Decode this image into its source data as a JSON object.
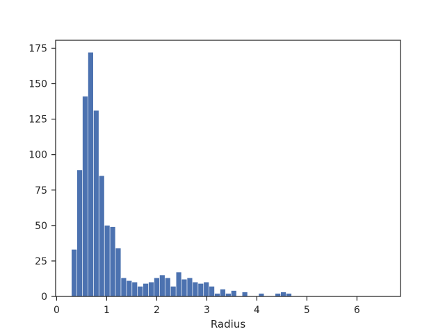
{
  "chart_data": {
    "type": "bar",
    "title": "",
    "xlabel": "Radius",
    "ylabel": "",
    "xlim": [
      -0.02,
      6.87
    ],
    "ylim": [
      0,
      180.6
    ],
    "grid": false,
    "legend": "none",
    "color": "#4c72b0",
    "bin_width": 0.1,
    "bin_starts": [
      0.3,
      0.41,
      0.52,
      0.63,
      0.74,
      0.85,
      0.96,
      1.07,
      1.18,
      1.29,
      1.4,
      1.51,
      1.62,
      1.73,
      1.84,
      1.95,
      2.06,
      2.17,
      2.28,
      2.39,
      2.5,
      2.61,
      2.72,
      2.83,
      2.94,
      3.05,
      3.16,
      3.27,
      3.38,
      3.49,
      3.6,
      3.71,
      3.82,
      3.93,
      4.04,
      4.15,
      4.26,
      4.37,
      4.48,
      4.59,
      4.7,
      4.81,
      4.92,
      5.03,
      5.14,
      5.25,
      5.36,
      5.47,
      5.58,
      5.69,
      5.8,
      5.91,
      6.02,
      6.13,
      6.24,
      6.35,
      6.46,
      6.57
    ],
    "counts": [
      33,
      89,
      141,
      172,
      131,
      85,
      50,
      49,
      34,
      13,
      11,
      10,
      7,
      9,
      10,
      13,
      15,
      13,
      7,
      17,
      12,
      13,
      10,
      9,
      10,
      7,
      2,
      5,
      2,
      4,
      0,
      3,
      0,
      0,
      2,
      0,
      0,
      2,
      3,
      2,
      0,
      0,
      0,
      0,
      0,
      0,
      0,
      0,
      0,
      0,
      0,
      0,
      0,
      0,
      0,
      0,
      0,
      0
    ],
    "x_ticks": [
      0,
      1,
      2,
      3,
      4,
      5,
      6
    ],
    "x_tick_labels": [
      "0",
      "1",
      "2",
      "3",
      "4",
      "5",
      "6"
    ],
    "y_ticks": [
      0,
      25,
      50,
      75,
      100,
      125,
      150,
      175
    ],
    "y_tick_labels": [
      "0",
      "25",
      "50",
      "75",
      "100",
      "125",
      "150",
      "175"
    ]
  }
}
